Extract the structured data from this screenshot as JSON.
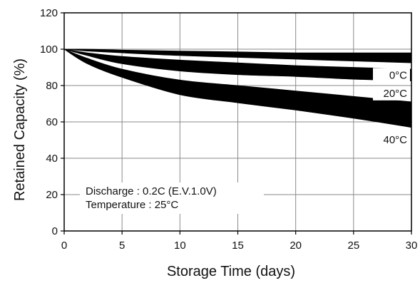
{
  "chart_data": {
    "type": "area",
    "xlabel": "Storage Time (days)",
    "ylabel": "Retained Capacity (%)",
    "xlim": [
      0,
      30
    ],
    "ylim": [
      0,
      120
    ],
    "xticks": [
      0,
      5,
      10,
      15,
      20,
      25,
      30
    ],
    "yticks": [
      0,
      20,
      40,
      60,
      80,
      100,
      120
    ],
    "grid": true,
    "x": [
      0,
      2,
      5,
      10,
      15,
      20,
      25,
      30
    ],
    "series": [
      {
        "name": "0°C",
        "upper": [
          100,
          100,
          99.5,
          99,
          98.5,
          98,
          98,
          98
        ],
        "lower": [
          100,
          99,
          98,
          96.5,
          95.5,
          94.5,
          93.5,
          92.5
        ]
      },
      {
        "name": "20°C",
        "upper": [
          100,
          98,
          96,
          94,
          92.5,
          91,
          90,
          89
        ],
        "lower": [
          100,
          96.5,
          92,
          88,
          86,
          85,
          83.5,
          82.5
        ]
      },
      {
        "name": "40°C",
        "upper": [
          100,
          95,
          89,
          83,
          80,
          77,
          74,
          71
        ],
        "lower": [
          100,
          92,
          84.5,
          75,
          70.5,
          66.5,
          62,
          57
        ]
      }
    ],
    "annotations": [
      "Discharge : 0.2C (E.V.1.0V)",
      "Temperature : 25°C"
    ],
    "colors": {
      "band": "#000000",
      "grid": "#8a8a8a",
      "axis": "#000000"
    }
  }
}
